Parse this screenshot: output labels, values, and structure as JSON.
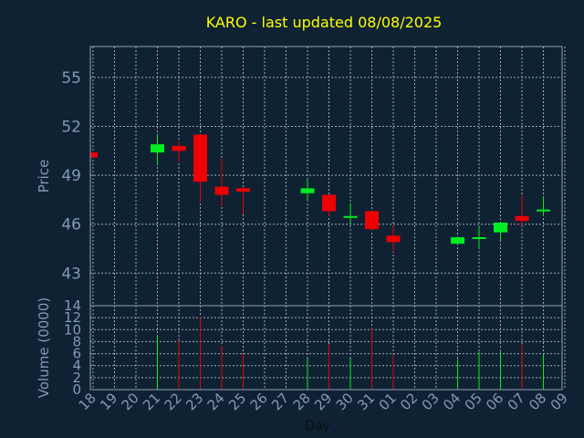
{
  "chart_data": {
    "type": "candlestick",
    "title": "KARO - last updated 08/08/2025",
    "xlabel": "Day",
    "ylabel": "Price",
    "ylabel_volume": "Volume (0000)",
    "categories": [
      "18",
      "19",
      "20",
      "21",
      "22",
      "23",
      "24",
      "25",
      "26",
      "27",
      "28",
      "29",
      "30",
      "31",
      "01",
      "02",
      "03",
      "04",
      "05",
      "06",
      "07",
      "08",
      "09"
    ],
    "price_ticks": [
      43,
      46,
      49,
      52,
      55
    ],
    "ylim": [
      41.0,
      56.9
    ],
    "volume_ticks": [
      0,
      2,
      4,
      6,
      8,
      10,
      12,
      14
    ],
    "volume_ylim": [
      0,
      14
    ],
    "grid": true,
    "candles": [
      {
        "x": "18",
        "open": 50.4,
        "close": 50.1,
        "high": 50.4,
        "low": 50.1
      },
      {
        "x": "21",
        "open": 50.4,
        "close": 50.9,
        "high": 51.5,
        "low": 49.6
      },
      {
        "x": "22",
        "open": 50.8,
        "close": 50.5,
        "high": 51.1,
        "low": 49.8
      },
      {
        "x": "23",
        "open": 51.5,
        "close": 48.6,
        "high": 51.5,
        "low": 47.4
      },
      {
        "x": "24",
        "open": 48.3,
        "close": 47.8,
        "high": 50.0,
        "low": 47.1
      },
      {
        "x": "25",
        "open": 48.2,
        "close": 48.0,
        "high": 48.3,
        "low": 46.6
      },
      {
        "x": "28",
        "open": 47.9,
        "close": 48.2,
        "high": 48.8,
        "low": 47.4
      },
      {
        "x": "29",
        "open": 47.8,
        "close": 46.8,
        "high": 47.8,
        "low": 46.5
      },
      {
        "x": "30",
        "open": 46.4,
        "close": 46.5,
        "high": 47.3,
        "low": 46.0
      },
      {
        "x": "31",
        "open": 46.8,
        "close": 45.7,
        "high": 46.8,
        "low": 45.6
      },
      {
        "x": "01",
        "open": 45.3,
        "close": 44.9,
        "high": 45.9,
        "low": 44.3
      },
      {
        "x": "04",
        "open": 44.8,
        "close": 45.2,
        "high": 45.2,
        "low": 44.8
      },
      {
        "x": "05",
        "open": 45.1,
        "close": 45.2,
        "high": 45.9,
        "low": 44.5
      },
      {
        "x": "06",
        "open": 45.5,
        "close": 46.1,
        "high": 46.1,
        "low": 45.0
      },
      {
        "x": "07",
        "open": 46.5,
        "close": 46.2,
        "high": 47.8,
        "low": 45.9
      },
      {
        "x": "08",
        "open": 46.8,
        "close": 46.9,
        "high": 47.7,
        "low": 46.5
      }
    ],
    "volume": [
      {
        "x": "21",
        "value": 9.0,
        "dir": "up"
      },
      {
        "x": "22",
        "value": 8.2,
        "dir": "down"
      },
      {
        "x": "23",
        "value": 12.2,
        "dir": "down"
      },
      {
        "x": "24",
        "value": 7.3,
        "dir": "down"
      },
      {
        "x": "25",
        "value": 5.9,
        "dir": "down"
      },
      {
        "x": "28",
        "value": 5.2,
        "dir": "up"
      },
      {
        "x": "29",
        "value": 7.6,
        "dir": "down"
      },
      {
        "x": "30",
        "value": 5.2,
        "dir": "up"
      },
      {
        "x": "31",
        "value": 10.3,
        "dir": "down"
      },
      {
        "x": "01",
        "value": 5.9,
        "dir": "down"
      },
      {
        "x": "04",
        "value": 5.1,
        "dir": "up"
      },
      {
        "x": "05",
        "value": 6.3,
        "dir": "up"
      },
      {
        "x": "06",
        "value": 6.3,
        "dir": "up"
      },
      {
        "x": "07",
        "value": 7.5,
        "dir": "down"
      },
      {
        "x": "08",
        "value": 5.9,
        "dir": "up"
      }
    ],
    "colors": {
      "background": "#0f2233",
      "up": "#00ee22",
      "down": "#ee0000",
      "frame": "#8ea2b4",
      "grid": "#9aaabb",
      "text": "#7f9bb8",
      "title": "#ffff00"
    }
  }
}
